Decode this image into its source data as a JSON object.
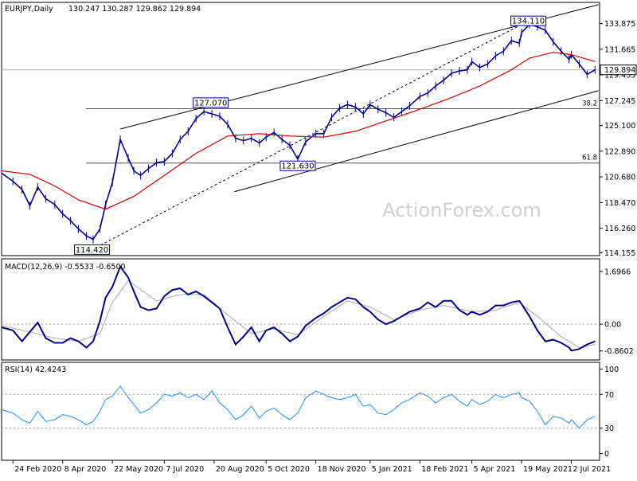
{
  "chart_data": {
    "type": "line",
    "main": {
      "symbol_label": "EURJPY,Daily",
      "ohlc_label": "130.247 130.287 129.862 129.894",
      "last_price": 129.894,
      "last_price_label": "129.894",
      "ylim": [
        113.9,
        135.7
      ],
      "y_ticks": [
        "133.875",
        "131.665",
        "129.455",
        "127.245",
        "125.100",
        "122.890",
        "120.680",
        "118.470",
        "116.260",
        "114.155"
      ],
      "swing_labels": [
        {
          "text": "114.420",
          "date": "2020-05-04",
          "value": 114.42
        },
        {
          "text": "127.070",
          "date": "2020-08-17",
          "value": 127.07
        },
        {
          "text": "121.630",
          "date": "2020-11-02",
          "value": 121.63
        },
        {
          "text": "134.110",
          "date": "2021-05-25",
          "value": 134.11
        }
      ],
      "fib_levels": [
        {
          "label": "38.2",
          "value": 126.55
        },
        {
          "label": "61.8",
          "value": 121.87
        }
      ],
      "channel_upper": [
        [
          "2020-05-29",
          124.8
        ],
        [
          "2021-07-26",
          135.5
        ]
      ],
      "channel_lower": [
        [
          "2020-09-07",
          119.4
        ],
        [
          "2021-07-26",
          128.1
        ]
      ],
      "dashed_support": [
        [
          "2020-05-04",
          114.42
        ],
        [
          "2021-05-25",
          134.11
        ]
      ],
      "series": [
        {
          "name": "EURJPY",
          "color": "#00008b",
          "dates": [
            "2020-02-14",
            "2020-02-24",
            "2020-03-03",
            "2020-03-10",
            "2020-03-17",
            "2020-03-24",
            "2020-04-01",
            "2020-04-08",
            "2020-04-15",
            "2020-04-22",
            "2020-04-29",
            "2020-05-05",
            "2020-05-11",
            "2020-05-16",
            "2020-05-22",
            "2020-05-29",
            "2020-06-05",
            "2020-06-10",
            "2020-06-16",
            "2020-06-23",
            "2020-06-30",
            "2020-07-07",
            "2020-07-14",
            "2020-07-21",
            "2020-07-28",
            "2020-08-04",
            "2020-08-11",
            "2020-08-18",
            "2020-08-25",
            "2020-09-01",
            "2020-09-08",
            "2020-09-15",
            "2020-09-22",
            "2020-09-29",
            "2020-10-05",
            "2020-10-12",
            "2020-10-19",
            "2020-10-26",
            "2020-11-02",
            "2020-11-09",
            "2020-11-18",
            "2020-11-25",
            "2020-12-02",
            "2020-12-09",
            "2020-12-16",
            "2020-12-23",
            "2020-12-30",
            "2021-01-05",
            "2021-01-12",
            "2021-01-19",
            "2021-01-26",
            "2021-02-02",
            "2021-02-09",
            "2021-02-18",
            "2021-02-25",
            "2021-03-04",
            "2021-03-11",
            "2021-03-18",
            "2021-03-25",
            "2021-04-01",
            "2021-04-05",
            "2021-04-12",
            "2021-04-19",
            "2021-04-26",
            "2021-05-03",
            "2021-05-10",
            "2021-05-17",
            "2021-05-19",
            "2021-05-26",
            "2021-06-02",
            "2021-06-09",
            "2021-06-16",
            "2021-06-23",
            "2021-06-30",
            "2021-07-02",
            "2021-07-09",
            "2021-07-16",
            "2021-07-23"
          ],
          "values": [
            121.0,
            120.3,
            119.6,
            118.2,
            119.8,
            118.8,
            118.3,
            117.5,
            116.9,
            116.2,
            115.6,
            115.3,
            116.2,
            118.3,
            120.2,
            123.9,
            122.3,
            121.2,
            120.8,
            121.4,
            121.9,
            122.0,
            122.7,
            123.9,
            124.6,
            125.7,
            126.3,
            126.1,
            125.9,
            125.2,
            124.0,
            123.8,
            124.0,
            123.6,
            124.1,
            124.5,
            123.9,
            123.4,
            122.2,
            123.7,
            124.4,
            124.4,
            125.8,
            126.6,
            126.9,
            126.7,
            126.1,
            126.9,
            126.5,
            126.2,
            125.8,
            126.3,
            126.8,
            127.6,
            127.9,
            128.5,
            129.0,
            129.6,
            129.8,
            129.9,
            130.6,
            130.1,
            130.4,
            131.1,
            131.5,
            132.4,
            132.2,
            133.1,
            133.8,
            133.6,
            133.3,
            132.3,
            131.5,
            130.8,
            131.2,
            130.4,
            129.5,
            129.9
          ]
        },
        {
          "name": "MA",
          "color": "#cc0000",
          "dates": [
            "2020-02-14",
            "2020-03-10",
            "2020-04-01",
            "2020-04-22",
            "2020-05-16",
            "2020-06-10",
            "2020-07-07",
            "2020-08-04",
            "2020-09-01",
            "2020-09-29",
            "2020-10-26",
            "2020-11-25",
            "2020-12-23",
            "2021-01-19",
            "2021-02-18",
            "2021-03-18",
            "2021-04-12",
            "2021-05-10",
            "2021-05-26",
            "2021-06-16",
            "2021-07-02",
            "2021-07-23"
          ],
          "values": [
            121.2,
            120.9,
            119.9,
            118.7,
            117.9,
            119.0,
            120.8,
            122.7,
            124.2,
            124.4,
            124.2,
            124.1,
            124.6,
            125.5,
            126.5,
            127.5,
            128.5,
            129.9,
            130.9,
            131.4,
            131.2,
            130.6
          ]
        }
      ]
    },
    "macd": {
      "label": "MACD(12,26,9) -0.5533 -0.6500",
      "ylim": [
        -1.15,
        2.1
      ],
      "y_ticks": [
        "1.6966",
        "0.00",
        "-0.8602"
      ],
      "zero_label": "0.00",
      "series": [
        {
          "name": "MACD",
          "color": "#00008b",
          "dates": [
            "2020-02-14",
            "2020-02-24",
            "2020-03-03",
            "2020-03-10",
            "2020-03-17",
            "2020-03-24",
            "2020-04-01",
            "2020-04-08",
            "2020-04-15",
            "2020-04-22",
            "2020-04-29",
            "2020-05-05",
            "2020-05-11",
            "2020-05-16",
            "2020-05-22",
            "2020-05-29",
            "2020-06-05",
            "2020-06-10",
            "2020-06-16",
            "2020-06-23",
            "2020-06-30",
            "2020-07-07",
            "2020-07-14",
            "2020-07-21",
            "2020-07-28",
            "2020-08-04",
            "2020-08-11",
            "2020-08-18",
            "2020-08-25",
            "2020-09-01",
            "2020-09-08",
            "2020-09-15",
            "2020-09-22",
            "2020-09-29",
            "2020-10-05",
            "2020-10-12",
            "2020-10-19",
            "2020-10-26",
            "2020-11-02",
            "2020-11-09",
            "2020-11-18",
            "2020-11-25",
            "2020-12-02",
            "2020-12-09",
            "2020-12-16",
            "2020-12-23",
            "2020-12-30",
            "2021-01-05",
            "2021-01-12",
            "2021-01-19",
            "2021-01-26",
            "2021-02-02",
            "2021-02-09",
            "2021-02-18",
            "2021-02-25",
            "2021-03-04",
            "2021-03-11",
            "2021-03-18",
            "2021-03-25",
            "2021-04-01",
            "2021-04-05",
            "2021-04-12",
            "2021-04-19",
            "2021-04-26",
            "2021-05-03",
            "2021-05-10",
            "2021-05-17",
            "2021-05-19",
            "2021-05-26",
            "2021-06-02",
            "2021-06-09",
            "2021-06-16",
            "2021-06-23",
            "2021-06-30",
            "2021-07-02",
            "2021-07-09",
            "2021-07-16",
            "2021-07-23"
          ],
          "values": [
            -0.1,
            -0.2,
            -0.55,
            -0.25,
            0.05,
            -0.45,
            -0.6,
            -0.6,
            -0.45,
            -0.55,
            -0.75,
            -0.55,
            0.1,
            0.85,
            1.2,
            1.85,
            1.5,
            1.05,
            0.55,
            0.45,
            0.5,
            0.9,
            1.1,
            1.15,
            0.95,
            1.05,
            0.9,
            0.7,
            0.5,
            -0.1,
            -0.65,
            -0.4,
            -0.1,
            -0.55,
            -0.2,
            -0.1,
            -0.3,
            -0.55,
            -0.4,
            -0.05,
            0.2,
            0.35,
            0.55,
            0.7,
            0.85,
            0.8,
            0.55,
            0.4,
            0.15,
            0.0,
            0.1,
            0.25,
            0.4,
            0.5,
            0.7,
            0.55,
            0.75,
            0.75,
            0.45,
            0.3,
            0.4,
            0.3,
            0.4,
            0.6,
            0.6,
            0.7,
            0.75,
            0.65,
            0.25,
            -0.2,
            -0.55,
            -0.5,
            -0.6,
            -0.75,
            -0.85,
            -0.8,
            -0.65,
            -0.55
          ]
        },
        {
          "name": "Signal",
          "color": "#aaaaaa",
          "dates": [
            "2020-02-14",
            "2020-03-10",
            "2020-04-01",
            "2020-04-22",
            "2020-05-11",
            "2020-05-22",
            "2020-06-05",
            "2020-06-30",
            "2020-07-21",
            "2020-08-11",
            "2020-09-01",
            "2020-09-22",
            "2020-10-12",
            "2020-11-02",
            "2020-11-25",
            "2020-12-16",
            "2021-01-05",
            "2021-01-26",
            "2021-02-18",
            "2021-03-11",
            "2021-04-05",
            "2021-04-26",
            "2021-05-17",
            "2021-06-02",
            "2021-06-23",
            "2021-07-09",
            "2021-07-23"
          ],
          "values": [
            -0.05,
            -0.25,
            -0.45,
            -0.55,
            -0.3,
            0.7,
            1.4,
            0.75,
            0.95,
            0.95,
            0.3,
            -0.3,
            -0.15,
            -0.35,
            0.25,
            0.75,
            0.55,
            0.15,
            0.45,
            0.6,
            0.4,
            0.45,
            0.7,
            0.25,
            -0.4,
            -0.75,
            -0.65
          ]
        }
      ]
    },
    "rsi": {
      "label": "RSI(14) 42.4243",
      "ylim": [
        0,
        100
      ],
      "y_ticks": [
        "100",
        "70",
        "30",
        "0"
      ],
      "levels": [
        70,
        30
      ],
      "series": [
        {
          "name": "RSI",
          "color": "#1e90ff",
          "dates": [
            "2020-02-14",
            "2020-02-24",
            "2020-03-03",
            "2020-03-10",
            "2020-03-17",
            "2020-03-24",
            "2020-04-01",
            "2020-04-08",
            "2020-04-15",
            "2020-04-22",
            "2020-04-29",
            "2020-05-05",
            "2020-05-11",
            "2020-05-16",
            "2020-05-22",
            "2020-05-29",
            "2020-06-05",
            "2020-06-10",
            "2020-06-16",
            "2020-06-23",
            "2020-06-30",
            "2020-07-07",
            "2020-07-14",
            "2020-07-21",
            "2020-07-28",
            "2020-08-04",
            "2020-08-11",
            "2020-08-18",
            "2020-08-25",
            "2020-09-01",
            "2020-09-08",
            "2020-09-15",
            "2020-09-22",
            "2020-09-29",
            "2020-10-05",
            "2020-10-12",
            "2020-10-19",
            "2020-10-26",
            "2020-11-02",
            "2020-11-09",
            "2020-11-18",
            "2020-11-25",
            "2020-12-02",
            "2020-12-09",
            "2020-12-16",
            "2020-12-23",
            "2020-12-30",
            "2021-01-05",
            "2021-01-12",
            "2021-01-19",
            "2021-01-26",
            "2021-02-02",
            "2021-02-09",
            "2021-02-18",
            "2021-02-25",
            "2021-03-04",
            "2021-03-11",
            "2021-03-18",
            "2021-03-25",
            "2021-04-01",
            "2021-04-05",
            "2021-04-12",
            "2021-04-19",
            "2021-04-26",
            "2021-05-03",
            "2021-05-10",
            "2021-05-17",
            "2021-05-19",
            "2021-05-26",
            "2021-06-02",
            "2021-06-09",
            "2021-06-16",
            "2021-06-23",
            "2021-06-30",
            "2021-07-02",
            "2021-07-09",
            "2021-07-16",
            "2021-07-23"
          ],
          "values": [
            52,
            48,
            40,
            36,
            50,
            38,
            40,
            46,
            44,
            40,
            34,
            38,
            50,
            64,
            68,
            80,
            66,
            58,
            48,
            52,
            60,
            70,
            68,
            72,
            66,
            70,
            64,
            74,
            60,
            52,
            40,
            46,
            56,
            42,
            50,
            54,
            46,
            40,
            48,
            66,
            74,
            70,
            66,
            64,
            66,
            70,
            56,
            58,
            48,
            46,
            52,
            60,
            64,
            72,
            68,
            60,
            66,
            70,
            62,
            56,
            64,
            58,
            62,
            70,
            66,
            70,
            72,
            66,
            62,
            50,
            34,
            44,
            42,
            36,
            40,
            30,
            40,
            44
          ]
        }
      ]
    },
    "x_labels": [
      {
        "text": "24 Feb 2020",
        "date": "2020-02-24"
      },
      {
        "text": "8 Apr 2020",
        "date": "2020-04-08"
      },
      {
        "text": "22 May 2020",
        "date": "2020-05-22"
      },
      {
        "text": "7 Jul 2020",
        "date": "2020-07-07"
      },
      {
        "text": "20 Aug 2020",
        "date": "2020-08-20"
      },
      {
        "text": "5 Oct 2020",
        "date": "2020-10-05"
      },
      {
        "text": "18 Nov 2020",
        "date": "2020-11-18"
      },
      {
        "text": "5 Jan 2021",
        "date": "2021-01-05"
      },
      {
        "text": "18 Feb 2021",
        "date": "2021-02-18"
      },
      {
        "text": "5 Apr 2021",
        "date": "2021-04-05"
      },
      {
        "text": "19 May 2021",
        "date": "2021-05-19"
      },
      {
        "text": "2 Jul 2021",
        "date": "2021-07-02"
      }
    ],
    "x_range": [
      "2020-02-14",
      "2021-07-27"
    ],
    "watermark": "ActionForex.com",
    "grid": false,
    "legend": "none"
  }
}
